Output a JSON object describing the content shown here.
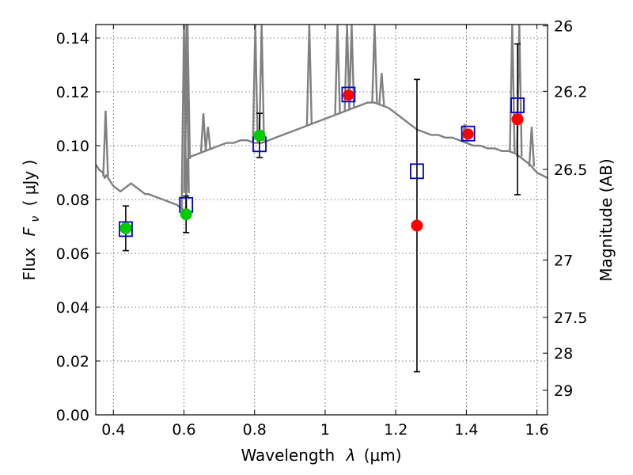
{
  "chart_data": {
    "type": "scatter",
    "xlabel_text": "Wavelength",
    "xlabel_symbol": "λ",
    "xlabel_unit": "(μm)",
    "ylabel_text": "Flux",
    "ylabel_symbol": "F",
    "ylabel_subscript": "ν",
    "ylabel_unit": "( μJy )",
    "y2label": "Magnitude (AB)",
    "xlim": [
      0.35,
      1.63
    ],
    "ylim": [
      0.0,
      0.145
    ],
    "grid": true,
    "x_ticks": [
      {
        "value": 0.4,
        "label": "0.4"
      },
      {
        "value": 0.6,
        "label": "0.6"
      },
      {
        "value": 0.8,
        "label": "0.8"
      },
      {
        "value": 1.0,
        "label": "1"
      },
      {
        "value": 1.2,
        "label": "1.2"
      },
      {
        "value": 1.4,
        "label": "1.4"
      },
      {
        "value": 1.6,
        "label": "1.6"
      }
    ],
    "y_ticks": [
      {
        "value": 0.0,
        "label": "0.00"
      },
      {
        "value": 0.02,
        "label": "0.02"
      },
      {
        "value": 0.04,
        "label": "0.04"
      },
      {
        "value": 0.06,
        "label": "0.06"
      },
      {
        "value": 0.08,
        "label": "0.08"
      },
      {
        "value": 0.1,
        "label": "0.10"
      },
      {
        "value": 0.12,
        "label": "0.12"
      },
      {
        "value": 0.14,
        "label": "0.14"
      }
    ],
    "y2_ticks": [
      {
        "label": "26",
        "flux": 0.1445
      },
      {
        "label": "26.2",
        "flux": 0.1202
      },
      {
        "label": "26.5",
        "flux": 0.0912
      },
      {
        "label": "27",
        "flux": 0.0575
      },
      {
        "label": "27.5",
        "flux": 0.0362
      },
      {
        "label": "28",
        "flux": 0.0229
      },
      {
        "label": "29",
        "flux": 0.0091
      }
    ],
    "observed_points": [
      {
        "x": 0.435,
        "y": 0.0693,
        "yerr": 0.0083,
        "color": "#00cc00"
      },
      {
        "x": 0.606,
        "y": 0.0745,
        "yerr": 0.0068,
        "color": "#00cc00"
      },
      {
        "x": 0.814,
        "y": 0.1038,
        "yerr": 0.0082,
        "color": "#00cc00"
      },
      {
        "x": 1.26,
        "y": 0.0703,
        "yerr": 0.0543,
        "color": "#ff0000"
      },
      {
        "x": 1.545,
        "y": 0.1098,
        "yerr": 0.028,
        "color": "#ff0000"
      }
    ],
    "model_points": [
      {
        "x": 0.435,
        "y": 0.069
      },
      {
        "x": 0.606,
        "y": 0.078
      },
      {
        "x": 0.814,
        "y": 0.1005
      },
      {
        "x": 1.066,
        "y": 0.119
      },
      {
        "x": 1.26,
        "y": 0.0905
      },
      {
        "x": 1.405,
        "y": 0.1045
      },
      {
        "x": 1.545,
        "y": 0.115
      }
    ],
    "extra_observed_points": [
      {
        "x": 1.066,
        "y": 0.1188,
        "color": "#ff0000"
      },
      {
        "x": 1.405,
        "y": 0.1043,
        "color": "#ff0000"
      }
    ],
    "spectrum": {
      "color": "#808080",
      "x": [
        0.35,
        0.36,
        0.37,
        0.375,
        0.38,
        0.39,
        0.4,
        0.41,
        0.42,
        0.43,
        0.44,
        0.45,
        0.46,
        0.47,
        0.48,
        0.49,
        0.5,
        0.52,
        0.54,
        0.56,
        0.58,
        0.59,
        0.6,
        0.605,
        0.61,
        0.62,
        0.64,
        0.66,
        0.68,
        0.7,
        0.72,
        0.74,
        0.76,
        0.78,
        0.8,
        0.82,
        0.84,
        0.86,
        0.88,
        0.9,
        0.92,
        0.94,
        0.96,
        0.98,
        1.0,
        1.02,
        1.04,
        1.06,
        1.08,
        1.1,
        1.12,
        1.14,
        1.16,
        1.18,
        1.2,
        1.22,
        1.24,
        1.26,
        1.28,
        1.3,
        1.32,
        1.34,
        1.36,
        1.38,
        1.4,
        1.42,
        1.44,
        1.46,
        1.48,
        1.5,
        1.52,
        1.54,
        1.56,
        1.58,
        1.6,
        1.63
      ],
      "y": [
        0.093,
        0.091,
        0.09,
        0.088,
        0.089,
        0.087,
        0.085,
        0.084,
        0.083,
        0.084,
        0.085,
        0.086,
        0.085,
        0.084,
        0.083,
        0.082,
        0.082,
        0.081,
        0.08,
        0.079,
        0.078,
        0.077,
        0.076,
        0.074,
        0.095,
        0.096,
        0.097,
        0.098,
        0.099,
        0.1,
        0.101,
        0.101,
        0.102,
        0.102,
        0.101,
        0.101,
        0.102,
        0.103,
        0.104,
        0.105,
        0.106,
        0.107,
        0.108,
        0.109,
        0.11,
        0.111,
        0.112,
        0.113,
        0.114,
        0.115,
        0.116,
        0.116,
        0.115,
        0.114,
        0.112,
        0.11,
        0.108,
        0.106,
        0.105,
        0.104,
        0.104,
        0.103,
        0.103,
        0.102,
        0.101,
        0.1,
        0.1,
        0.099,
        0.099,
        0.098,
        0.098,
        0.097,
        0.095,
        0.093,
        0.09,
        0.088
      ]
    },
    "emission_lines": [
      {
        "x": 0.378,
        "peak": 0.113
      },
      {
        "x": 0.6,
        "peak": 0.145
      },
      {
        "x": 0.607,
        "peak": 0.145
      },
      {
        "x": 0.61,
        "peak": 0.145
      },
      {
        "x": 0.655,
        "peak": 0.112
      },
      {
        "x": 0.668,
        "peak": 0.107
      },
      {
        "x": 0.802,
        "peak": 0.145
      },
      {
        "x": 0.82,
        "peak": 0.145
      },
      {
        "x": 0.955,
        "peak": 0.145
      },
      {
        "x": 1.035,
        "peak": 0.145
      },
      {
        "x": 1.062,
        "peak": 0.145
      },
      {
        "x": 1.075,
        "peak": 0.145
      },
      {
        "x": 1.14,
        "peak": 0.145
      },
      {
        "x": 1.16,
        "peak": 0.127
      },
      {
        "x": 1.395,
        "peak": 0.108
      },
      {
        "x": 1.53,
        "peak": 0.145
      },
      {
        "x": 1.55,
        "peak": 0.145
      },
      {
        "x": 1.585,
        "peak": 0.107
      }
    ]
  }
}
